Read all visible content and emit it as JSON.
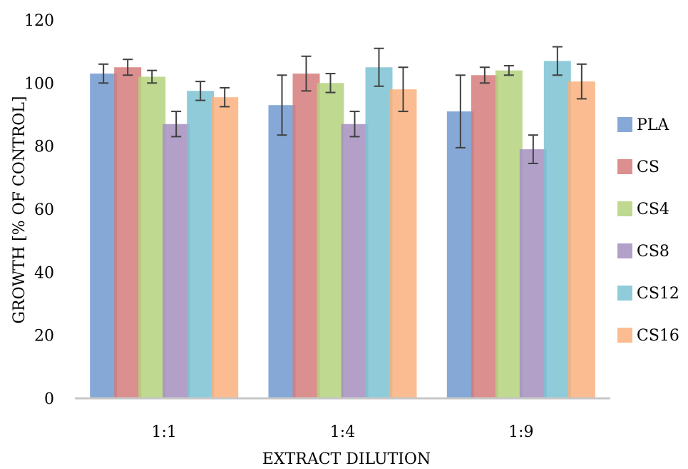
{
  "chart_data": {
    "type": "bar",
    "title": "",
    "xlabel": "EXTRACT DILUTION",
    "ylabel": "GROWTH [% OF CONTROL]",
    "ylim": [
      0,
      120
    ],
    "yticks": [
      0,
      20,
      40,
      60,
      80,
      100,
      120
    ],
    "grid": false,
    "legend_position": "right",
    "categories": [
      "1:1",
      "1:4",
      "1:9"
    ],
    "series": [
      {
        "name": "PLA",
        "color": "#7199CF",
        "values": [
          103,
          93,
          91
        ],
        "errors": [
          3,
          9.5,
          11.5
        ]
      },
      {
        "name": "CS",
        "color": "#D67B7B",
        "values": [
          105,
          103,
          102.5
        ],
        "errors": [
          2.5,
          5.5,
          2.5
        ]
      },
      {
        "name": "CS4",
        "color": "#B4D27E",
        "values": [
          102,
          100,
          104
        ],
        "errors": [
          2,
          3,
          1.5
        ]
      },
      {
        "name": "CS8",
        "color": "#A48FBF",
        "values": [
          87,
          87,
          79
        ],
        "errors": [
          4,
          4,
          4.5
        ]
      },
      {
        "name": "CS12",
        "color": "#7DC2D3",
        "values": [
          97.5,
          105,
          107
        ],
        "errors": [
          3,
          6,
          4.5
        ]
      },
      {
        "name": "CS16",
        "color": "#F9B07D",
        "values": [
          95.5,
          98,
          100.5
        ],
        "errors": [
          3,
          7,
          5.5
        ]
      }
    ]
  }
}
